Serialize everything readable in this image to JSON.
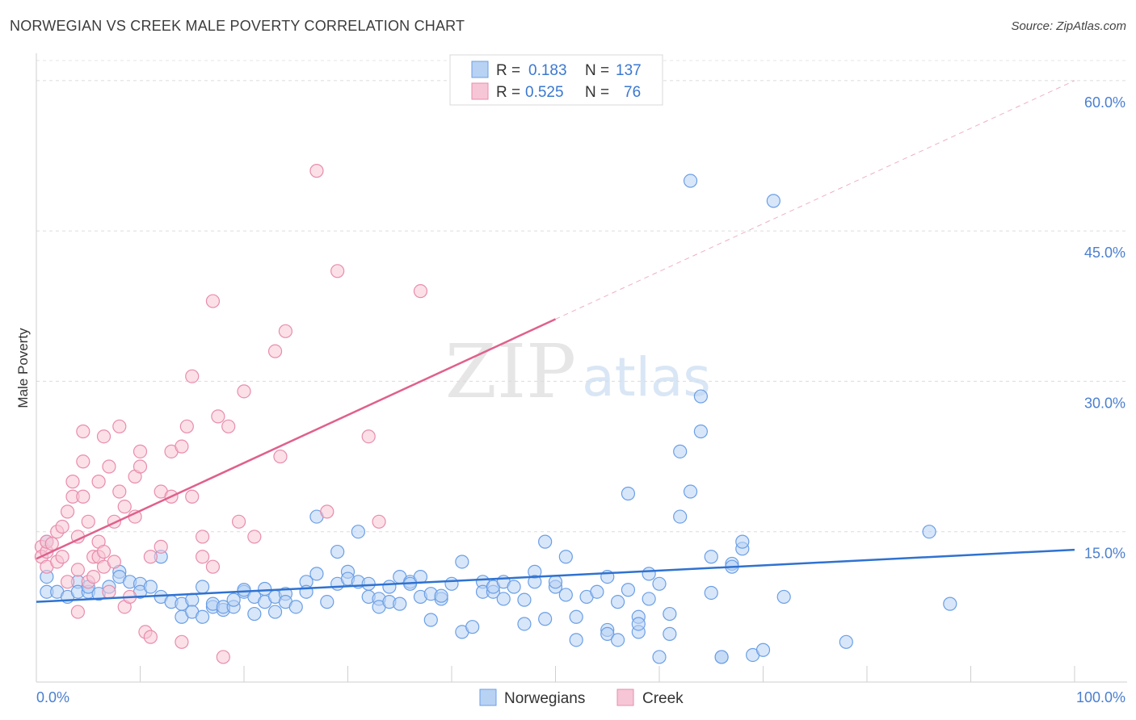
{
  "title": "NORWEGIAN VS CREEK MALE POVERTY CORRELATION CHART",
  "source": "Source: ZipAtlas.com",
  "watermark": {
    "zip": "ZIP",
    "atlas": "atlas"
  },
  "chart_data": {
    "type": "scatter",
    "ylabel": "Male Poverty",
    "xlim": [
      0,
      100
    ],
    "ylim": [
      0,
      62
    ],
    "x_tick_labels": [
      "0.0%",
      "100.0%"
    ],
    "y_ticks": [
      15,
      30,
      45,
      60
    ],
    "y_tick_labels": [
      "15.0%",
      "30.0%",
      "45.0%",
      "60.0%"
    ],
    "grid": true,
    "legend_position": "top-center",
    "stats_legend": [
      {
        "r_label": "R =",
        "r_value": "0.183",
        "n_label": "N =",
        "n_value": "137"
      },
      {
        "r_label": "R =",
        "r_value": "0.525",
        "n_label": "N =",
        "n_value": "76"
      }
    ],
    "series": [
      {
        "name": "Norwegians",
        "color": "#6a9fe6",
        "fill": "#b8d2f4",
        "line_color": "#2f72d0",
        "trend": {
          "x0": 0,
          "y0": 8.0,
          "x1": 100,
          "y1": 13.2
        },
        "points": [
          [
            1,
            10.5
          ],
          [
            1,
            14
          ],
          [
            1,
            9
          ],
          [
            2,
            9
          ],
          [
            3,
            8.5
          ],
          [
            4,
            10
          ],
          [
            4,
            9
          ],
          [
            5,
            9
          ],
          [
            5,
            9.5
          ],
          [
            6,
            8.8
          ],
          [
            7,
            9.5
          ],
          [
            8,
            11
          ],
          [
            8,
            10.5
          ],
          [
            9,
            10
          ],
          [
            10,
            9.8
          ],
          [
            10,
            9
          ],
          [
            11,
            9.5
          ],
          [
            12,
            12.5
          ],
          [
            12,
            8.5
          ],
          [
            13,
            8
          ],
          [
            14,
            6.5
          ],
          [
            14,
            7.8
          ],
          [
            15,
            8.2
          ],
          [
            15,
            7
          ],
          [
            16,
            6.5
          ],
          [
            16,
            9.5
          ],
          [
            17,
            7.5
          ],
          [
            17,
            7.8
          ],
          [
            18,
            7.2
          ],
          [
            18,
            7.5
          ],
          [
            19,
            7.5
          ],
          [
            19,
            8.2
          ],
          [
            20,
            9
          ],
          [
            20,
            9.2
          ],
          [
            21,
            6.8
          ],
          [
            21,
            8.5
          ],
          [
            22,
            8
          ],
          [
            22,
            9.3
          ],
          [
            23,
            8.5
          ],
          [
            23,
            7
          ],
          [
            24,
            8.8
          ],
          [
            24,
            8
          ],
          [
            25,
            7.5
          ],
          [
            26,
            10
          ],
          [
            26,
            9
          ],
          [
            27,
            10.8
          ],
          [
            27,
            16.5
          ],
          [
            28,
            8
          ],
          [
            29,
            13
          ],
          [
            29,
            9.8
          ],
          [
            30,
            11
          ],
          [
            30,
            10.3
          ],
          [
            31,
            15
          ],
          [
            31,
            10
          ],
          [
            32,
            9.8
          ],
          [
            32,
            8.5
          ],
          [
            33,
            8.3
          ],
          [
            33,
            7.5
          ],
          [
            34,
            9.5
          ],
          [
            34,
            8
          ],
          [
            35,
            10.5
          ],
          [
            35,
            7.8
          ],
          [
            36,
            10
          ],
          [
            36,
            9.8
          ],
          [
            37,
            8.5
          ],
          [
            37,
            10.5
          ],
          [
            38,
            6.2
          ],
          [
            38,
            8.8
          ],
          [
            39,
            8.3
          ],
          [
            39,
            8.6
          ],
          [
            40,
            9.8
          ],
          [
            41,
            12
          ],
          [
            41,
            5
          ],
          [
            42,
            5.5
          ],
          [
            43,
            10
          ],
          [
            43,
            9
          ],
          [
            44,
            9
          ],
          [
            44,
            9.5
          ],
          [
            45,
            8.3
          ],
          [
            45,
            10
          ],
          [
            46,
            9.5
          ],
          [
            47,
            5.8
          ],
          [
            47,
            8.2
          ],
          [
            48,
            11
          ],
          [
            48,
            10
          ],
          [
            49,
            6.3
          ],
          [
            49,
            14
          ],
          [
            50,
            9.5
          ],
          [
            50,
            10
          ],
          [
            51,
            12.5
          ],
          [
            51,
            8.7
          ],
          [
            52,
            6.5
          ],
          [
            52,
            4.2
          ],
          [
            53,
            8.5
          ],
          [
            54,
            9
          ],
          [
            55,
            5.2
          ],
          [
            55,
            4.8
          ],
          [
            55,
            10.5
          ],
          [
            56,
            4.2
          ],
          [
            56,
            8
          ],
          [
            57,
            9.2
          ],
          [
            57,
            18.8
          ],
          [
            58,
            5
          ],
          [
            58,
            6.5
          ],
          [
            58,
            5.8
          ],
          [
            59,
            10.8
          ],
          [
            59,
            8.3
          ],
          [
            60,
            9.8
          ],
          [
            60,
            2.5
          ],
          [
            61,
            4.8
          ],
          [
            61,
            6.8
          ],
          [
            62,
            16.5
          ],
          [
            62,
            23
          ],
          [
            63,
            19
          ],
          [
            63,
            50
          ],
          [
            64,
            28.5
          ],
          [
            64,
            25
          ],
          [
            65,
            12.5
          ],
          [
            65,
            8.9
          ],
          [
            66,
            2.5
          ],
          [
            66,
            2.5
          ],
          [
            67,
            11.8
          ],
          [
            67,
            11.5
          ],
          [
            68,
            13.3
          ],
          [
            68,
            14
          ],
          [
            69,
            2.7
          ],
          [
            70,
            3.2
          ],
          [
            71,
            48
          ],
          [
            72,
            8.5
          ],
          [
            78,
            4
          ],
          [
            86,
            15
          ],
          [
            88,
            7.8
          ]
        ]
      },
      {
        "name": "Creek",
        "color": "#e98cab",
        "fill": "#f7c6d6",
        "line_color": "#e0608d",
        "trend": {
          "x0": 0,
          "y0": 12.3,
          "x1": 50,
          "y1": 36.2
        },
        "trend_ext": {
          "x0": 50,
          "y0": 36.2,
          "x1": 100,
          "y1": 60.0
        },
        "points": [
          [
            0.5,
            13.5
          ],
          [
            0.5,
            12.5
          ],
          [
            1,
            13
          ],
          [
            1,
            14
          ],
          [
            1,
            11.5
          ],
          [
            1.5,
            13.8
          ],
          [
            2,
            15
          ],
          [
            2,
            12
          ],
          [
            2.5,
            12.5
          ],
          [
            2.5,
            15.5
          ],
          [
            3,
            17
          ],
          [
            3,
            10
          ],
          [
            3.5,
            18.5
          ],
          [
            3.5,
            20
          ],
          [
            4,
            14.5
          ],
          [
            4,
            11.2
          ],
          [
            4,
            7
          ],
          [
            4.5,
            22
          ],
          [
            4.5,
            18.5
          ],
          [
            4.5,
            25
          ],
          [
            5,
            16
          ],
          [
            5,
            10
          ],
          [
            5.5,
            12.5
          ],
          [
            5.5,
            10.5
          ],
          [
            6,
            14
          ],
          [
            6,
            12.5
          ],
          [
            6,
            20
          ],
          [
            6.5,
            24.5
          ],
          [
            6.5,
            13
          ],
          [
            6.5,
            11.5
          ],
          [
            7,
            21.5
          ],
          [
            7,
            9
          ],
          [
            7.5,
            16
          ],
          [
            7.5,
            12
          ],
          [
            8,
            19
          ],
          [
            8,
            25.5
          ],
          [
            8.5,
            17.5
          ],
          [
            8.5,
            7.5
          ],
          [
            9,
            8.5
          ],
          [
            9.5,
            20.5
          ],
          [
            9.5,
            16.5
          ],
          [
            10,
            21.5
          ],
          [
            10,
            23
          ],
          [
            10.5,
            5
          ],
          [
            11,
            12.5
          ],
          [
            11,
            4.5
          ],
          [
            12,
            19
          ],
          [
            12,
            13.5
          ],
          [
            13,
            18.5
          ],
          [
            13,
            23
          ],
          [
            14,
            23.5
          ],
          [
            14,
            4
          ],
          [
            14.5,
            25.5
          ],
          [
            15,
            30.5
          ],
          [
            15,
            18.5
          ],
          [
            16,
            14.5
          ],
          [
            16,
            12.5
          ],
          [
            17,
            11.5
          ],
          [
            17,
            38
          ],
          [
            17.5,
            26.5
          ],
          [
            18,
            2.5
          ],
          [
            18.5,
            25.5
          ],
          [
            19.5,
            16
          ],
          [
            20,
            29
          ],
          [
            21,
            14.5
          ],
          [
            23,
            33
          ],
          [
            23.5,
            22.5
          ],
          [
            24,
            35
          ],
          [
            27,
            51
          ],
          [
            28,
            17
          ],
          [
            29,
            41
          ],
          [
            32,
            24.5
          ],
          [
            33,
            16
          ],
          [
            37,
            39
          ]
        ]
      }
    ]
  },
  "bottom_legend": [
    "Norwegians",
    "Creek"
  ]
}
